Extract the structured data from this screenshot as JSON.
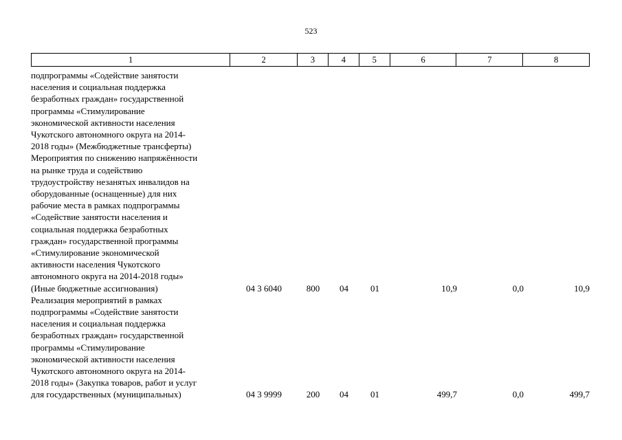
{
  "page": {
    "number": "523"
  },
  "table": {
    "headers": [
      "1",
      "2",
      "3",
      "4",
      "5",
      "6",
      "7",
      "8"
    ],
    "rows": [
      {
        "lines": [
          "подпрограммы «Содействие занятости",
          "населения и социальная поддержка",
          "безработных граждан» государственной",
          "программы «Стимулирование",
          "экономической активности населения",
          "Чукотского автономного округа на 2014-",
          "2018 годы» (Межбюджетные трансферты)"
        ],
        "values": [
          "",
          "",
          "",
          "",
          "",
          "",
          ""
        ]
      },
      {
        "lines": [
          "Мероприятия по снижению напряжённости",
          "на рынке труда и содействию",
          "трудоустройству незанятых инвалидов на",
          "оборудованные (оснащенные) для них",
          "рабочие места в рамках подпрограммы",
          "«Содействие занятости населения и",
          "социальная поддержка безработных",
          "граждан» государственной программы",
          "«Стимулирование экономической",
          "активности населения Чукотского",
          "автономного округа на 2014-2018 годы»",
          "(Иные бюджетные ассигнования)"
        ],
        "values": [
          "04 3 6040",
          "800",
          "04",
          "01",
          "10,9",
          "0,0",
          "10,9"
        ]
      },
      {
        "lines": [
          "Реализация мероприятий в рамках",
          "подпрограммы «Содействие занятости",
          "населения и социальная поддержка",
          "безработных граждан» государственной",
          "программы «Стимулирование",
          "экономической активности населения",
          "Чукотского автономного округа на 2014-",
          "2018 годы» (Закупка товаров, работ и услуг",
          "для государственных (муниципальных)"
        ],
        "values": [
          "04 3 9999",
          "200",
          "04",
          "01",
          "499,7",
          "0,0",
          "499,7"
        ]
      }
    ]
  }
}
